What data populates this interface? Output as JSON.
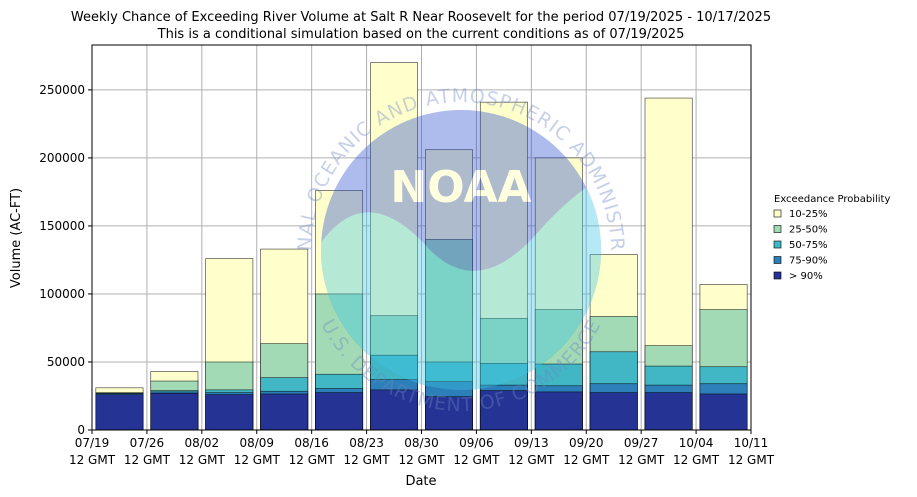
{
  "chart_data": {
    "type": "bar",
    "title": "Weekly Chance of Exceeding River Volume at Salt R Near Roosevelt for the period 07/19/2025 - 10/17/2025",
    "subtitle": "This is a conditional simulation based on the current conditions as of 07/19/2025",
    "xlabel": "Date",
    "ylabel": "Volume (AC-FT)",
    "ylim": [
      0,
      283000
    ],
    "grid": true,
    "legend_title": "Exceedance Probability",
    "legend_position": "right",
    "x_tick_labels": [
      [
        "07/19",
        "12 GMT"
      ],
      [
        "07/26",
        "12 GMT"
      ],
      [
        "08/02",
        "12 GMT"
      ],
      [
        "08/09",
        "12 GMT"
      ],
      [
        "08/16",
        "12 GMT"
      ],
      [
        "08/23",
        "12 GMT"
      ],
      [
        "08/30",
        "12 GMT"
      ],
      [
        "09/06",
        "12 GMT"
      ],
      [
        "09/13",
        "12 GMT"
      ],
      [
        "09/20",
        "12 GMT"
      ],
      [
        "09/27",
        "12 GMT"
      ],
      [
        "10/04",
        "12 GMT"
      ],
      [
        "10/11",
        "12 GMT"
      ]
    ],
    "y_ticks": [
      0,
      50000,
      100000,
      150000,
      200000,
      250000
    ],
    "y_tick_labels": [
      "0",
      "50000",
      "100000",
      "150000",
      "200000",
      "250000"
    ],
    "series": [
      {
        "name": "10-25%",
        "color": "#ffffcc",
        "values": [
          31000,
          43000,
          126000,
          133000,
          176000,
          270000,
          206000,
          241000,
          200000,
          129000,
          244000,
          107000
        ]
      },
      {
        "name": "25-50%",
        "color": "#a1dab4",
        "values": [
          27500,
          36000,
          50000,
          63500,
          100000,
          84000,
          140000,
          82000,
          88500,
          83500,
          62000,
          88500
        ]
      },
      {
        "name": "50-75%",
        "color": "#41b6c4",
        "values": [
          27000,
          29000,
          29500,
          38500,
          41000,
          55000,
          50000,
          49000,
          48500,
          57500,
          47000,
          46500
        ]
      },
      {
        "name": "75-90%",
        "color": "#2c7fb8",
        "values": [
          26800,
          28000,
          27500,
          28500,
          30500,
          37000,
          35500,
          33000,
          32500,
          34000,
          33000,
          34000
        ]
      },
      {
        "name": "> 90%",
        "color": "#253494",
        "values": [
          26000,
          27000,
          26000,
          26500,
          27500,
          29500,
          24500,
          29000,
          28000,
          27500,
          27500,
          26500
        ]
      }
    ]
  },
  "watermark": {
    "top_text": "NATIONAL OCEANIC AND ATMOSPHERIC ADMINISTRATION",
    "bottom_text": "U.S. DEPARTMENT OF COMMERCE",
    "logo_text": "NOAA"
  }
}
